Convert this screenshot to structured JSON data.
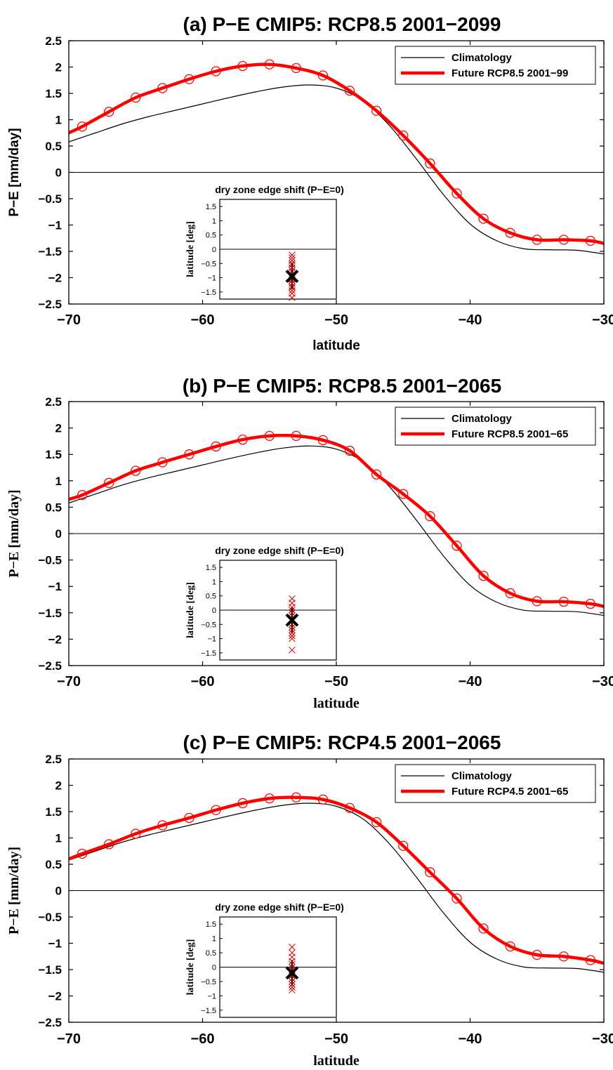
{
  "colors": {
    "climatology": "#000000",
    "future": "#ff0000",
    "ensemble_marks": "#cc0000",
    "mean_mark": "#000000"
  },
  "chart_data": [
    {
      "type": "line",
      "title": "(a)   P−E CMIP5: RCP8.5 2001−2099",
      "xlabel": "latitude",
      "ylabel": "P−E [mm/day]",
      "xlim": [
        -70,
        -30
      ],
      "ylim": [
        -2.5,
        2.5
      ],
      "x_ticks": [
        -70,
        -60,
        -50,
        -40,
        -30
      ],
      "x_tick_labels": [
        "−70",
        "−60",
        "−50",
        "−40",
        "−30"
      ],
      "y_ticks": [
        -2.5,
        -2,
        -1.5,
        -1,
        -0.5,
        0,
        0.5,
        1,
        1.5,
        2,
        2.5
      ],
      "y_tick_labels": [
        "−2.5",
        "−2",
        "−1.5",
        "−1",
        "−0.5",
        "0",
        "0.5",
        "1",
        "1.5",
        "2",
        "2.5"
      ],
      "legend_position": "top-right",
      "grid": false,
      "series": [
        {
          "name": "Climatology",
          "x": [
            -70,
            -68,
            -66,
            -64,
            -62,
            -60,
            -58,
            -56,
            -54,
            -52,
            -50,
            -48,
            -46,
            -44,
            -42,
            -40,
            -38,
            -36,
            -34,
            -32,
            -30
          ],
          "y": [
            0.58,
            0.75,
            0.92,
            1.06,
            1.18,
            1.3,
            1.42,
            1.53,
            1.62,
            1.66,
            1.6,
            1.36,
            0.88,
            0.25,
            -0.42,
            -0.98,
            -1.3,
            -1.45,
            -1.47,
            -1.48,
            -1.55
          ]
        },
        {
          "name": "Future RCP8.5 2001−99",
          "x": [
            -70,
            -69,
            -67,
            -65,
            -63,
            -61,
            -59,
            -57,
            -55,
            -53,
            -51,
            -49,
            -47,
            -45,
            -43,
            -41,
            -39,
            -37,
            -35,
            -33,
            -31,
            -30
          ],
          "y": [
            0.75,
            0.87,
            1.15,
            1.42,
            1.6,
            1.77,
            1.92,
            2.02,
            2.05,
            1.98,
            1.84,
            1.55,
            1.17,
            0.7,
            0.17,
            -0.4,
            -0.88,
            -1.15,
            -1.28,
            -1.28,
            -1.3,
            -1.35
          ]
        }
      ],
      "inset": {
        "title": "dry zone edge shift (P−E=0)",
        "ylabel": "latitude [deg]",
        "ylim": [
          -1.75,
          1.75
        ],
        "y_ticks": [
          -1.5,
          -1,
          -0.5,
          0,
          0.5,
          1,
          1.5
        ],
        "y_tick_labels": [
          "−1.5",
          "−1",
          "−0.5",
          "0",
          "0.5",
          "1",
          "1.5"
        ],
        "ensemble_shifts": [
          -0.2,
          -0.3,
          -0.4,
          -0.5,
          -0.55,
          -0.65,
          -0.75,
          -0.8,
          -0.9,
          -1.0,
          -1.05,
          -1.1,
          -1.2,
          -1.3,
          -1.35,
          -1.45,
          -1.55,
          -1.7
        ],
        "mean_shift": -0.95
      }
    },
    {
      "type": "line",
      "title": "(b)   P−E CMIP5: RCP8.5 2001−2065",
      "xlabel": "latitude",
      "ylabel": "P−E [mm/day]",
      "xlim": [
        -70,
        -30
      ],
      "ylim": [
        -2.5,
        2.5
      ],
      "x_ticks": [
        -70,
        -60,
        -50,
        -40,
        -30
      ],
      "x_tick_labels": [
        "−70",
        "−60",
        "−50",
        "−40",
        "−30"
      ],
      "y_ticks": [
        -2.5,
        -2,
        -1.5,
        -1,
        -0.5,
        0,
        0.5,
        1,
        1.5,
        2,
        2.5
      ],
      "y_tick_labels": [
        "−2.5",
        "−2",
        "−1.5",
        "−1",
        "−0.5",
        "0",
        "0.5",
        "1",
        "1.5",
        "2",
        "2.5"
      ],
      "legend_position": "top-right",
      "grid": false,
      "series": [
        {
          "name": "Climatology",
          "x": [
            -70,
            -68,
            -66,
            -64,
            -62,
            -60,
            -58,
            -56,
            -54,
            -52,
            -50,
            -48,
            -46,
            -44,
            -42,
            -40,
            -38,
            -36,
            -34,
            -32,
            -30
          ],
          "y": [
            0.58,
            0.75,
            0.92,
            1.06,
            1.18,
            1.3,
            1.42,
            1.53,
            1.62,
            1.66,
            1.6,
            1.36,
            0.88,
            0.25,
            -0.42,
            -0.98,
            -1.3,
            -1.45,
            -1.47,
            -1.48,
            -1.55
          ]
        },
        {
          "name": "Future RCP8.5 2001−65",
          "x": [
            -70,
            -69,
            -67,
            -65,
            -63,
            -61,
            -59,
            -57,
            -55,
            -53,
            -51,
            -49,
            -47,
            -45,
            -43,
            -41,
            -39,
            -37,
            -35,
            -33,
            -31,
            -30
          ],
          "y": [
            0.65,
            0.73,
            0.96,
            1.19,
            1.35,
            1.5,
            1.65,
            1.78,
            1.85,
            1.85,
            1.77,
            1.57,
            1.12,
            0.75,
            0.33,
            -0.23,
            -0.8,
            -1.13,
            -1.28,
            -1.29,
            -1.33,
            -1.38
          ]
        }
      ],
      "inset": {
        "title": "dry zone edge shift (P−E=0)",
        "ylabel": "latitude [deg]",
        "ylim": [
          -1.75,
          1.75
        ],
        "y_ticks": [
          -1.5,
          -1,
          -0.5,
          0,
          0.5,
          1,
          1.5
        ],
        "y_tick_labels": [
          "−1.5",
          "−1",
          "−0.5",
          "0",
          "0.5",
          "1",
          "1.5"
        ],
        "ensemble_shifts": [
          0.4,
          0.25,
          0.1,
          0.0,
          -0.1,
          -0.2,
          -0.3,
          -0.4,
          -0.5,
          -0.6,
          -0.7,
          -0.8,
          -0.9,
          -1.0,
          -1.4
        ],
        "mean_shift": -0.35
      }
    },
    {
      "type": "line",
      "title": "(c)   P−E CMIP5: RCP4.5 2001−2065",
      "xlabel": "latitude",
      "ylabel": "P−E [mm/day]",
      "xlim": [
        -70,
        -30
      ],
      "ylim": [
        -2.5,
        2.5
      ],
      "x_ticks": [
        -70,
        -60,
        -50,
        -40,
        -30
      ],
      "x_tick_labels": [
        "−70",
        "−60",
        "−50",
        "−40",
        "−30"
      ],
      "y_ticks": [
        -2.5,
        -2,
        -1.5,
        -1,
        -0.5,
        0,
        0.5,
        1,
        1.5,
        2,
        2.5
      ],
      "y_tick_labels": [
        "−2.5",
        "−2",
        "−1.5",
        "−1",
        "−0.5",
        "0",
        "0.5",
        "1",
        "1.5",
        "2",
        "2.5"
      ],
      "legend_position": "top-right",
      "grid": false,
      "series": [
        {
          "name": "Climatology",
          "x": [
            -70,
            -68,
            -66,
            -64,
            -62,
            -60,
            -58,
            -56,
            -54,
            -52,
            -50,
            -48,
            -46,
            -44,
            -42,
            -40,
            -38,
            -36,
            -34,
            -32,
            -30
          ],
          "y": [
            0.58,
            0.75,
            0.92,
            1.06,
            1.18,
            1.3,
            1.42,
            1.53,
            1.62,
            1.66,
            1.6,
            1.36,
            0.88,
            0.25,
            -0.42,
            -0.98,
            -1.3,
            -1.45,
            -1.47,
            -1.48,
            -1.55
          ]
        },
        {
          "name": "Future RCP4.5 2001−65",
          "x": [
            -70,
            -69,
            -67,
            -65,
            -63,
            -61,
            -59,
            -57,
            -55,
            -53,
            -51,
            -49,
            -47,
            -45,
            -43,
            -41,
            -39,
            -37,
            -35,
            -33,
            -31,
            -30
          ],
          "y": [
            0.6,
            0.7,
            0.88,
            1.08,
            1.24,
            1.38,
            1.53,
            1.66,
            1.75,
            1.77,
            1.73,
            1.57,
            1.3,
            0.85,
            0.35,
            -0.15,
            -0.72,
            -1.06,
            -1.22,
            -1.25,
            -1.32,
            -1.38
          ]
        }
      ],
      "inset": {
        "title": "dry zone edge shift (P−E=0)",
        "ylabel": "latitude [deg]",
        "ylim": [
          -1.75,
          1.75
        ],
        "y_ticks": [
          -1.5,
          -1,
          -0.5,
          0,
          0.5,
          1,
          1.5
        ],
        "y_tick_labels": [
          "−1.5",
          "−1",
          "−0.5",
          "0",
          "0.5",
          "1",
          "1.5"
        ],
        "ensemble_shifts": [
          0.7,
          0.5,
          0.35,
          0.2,
          0.1,
          0.0,
          -0.1,
          -0.2,
          -0.3,
          -0.4,
          -0.5,
          -0.6,
          -0.7,
          -0.8
        ],
        "mean_shift": -0.2
      }
    }
  ]
}
